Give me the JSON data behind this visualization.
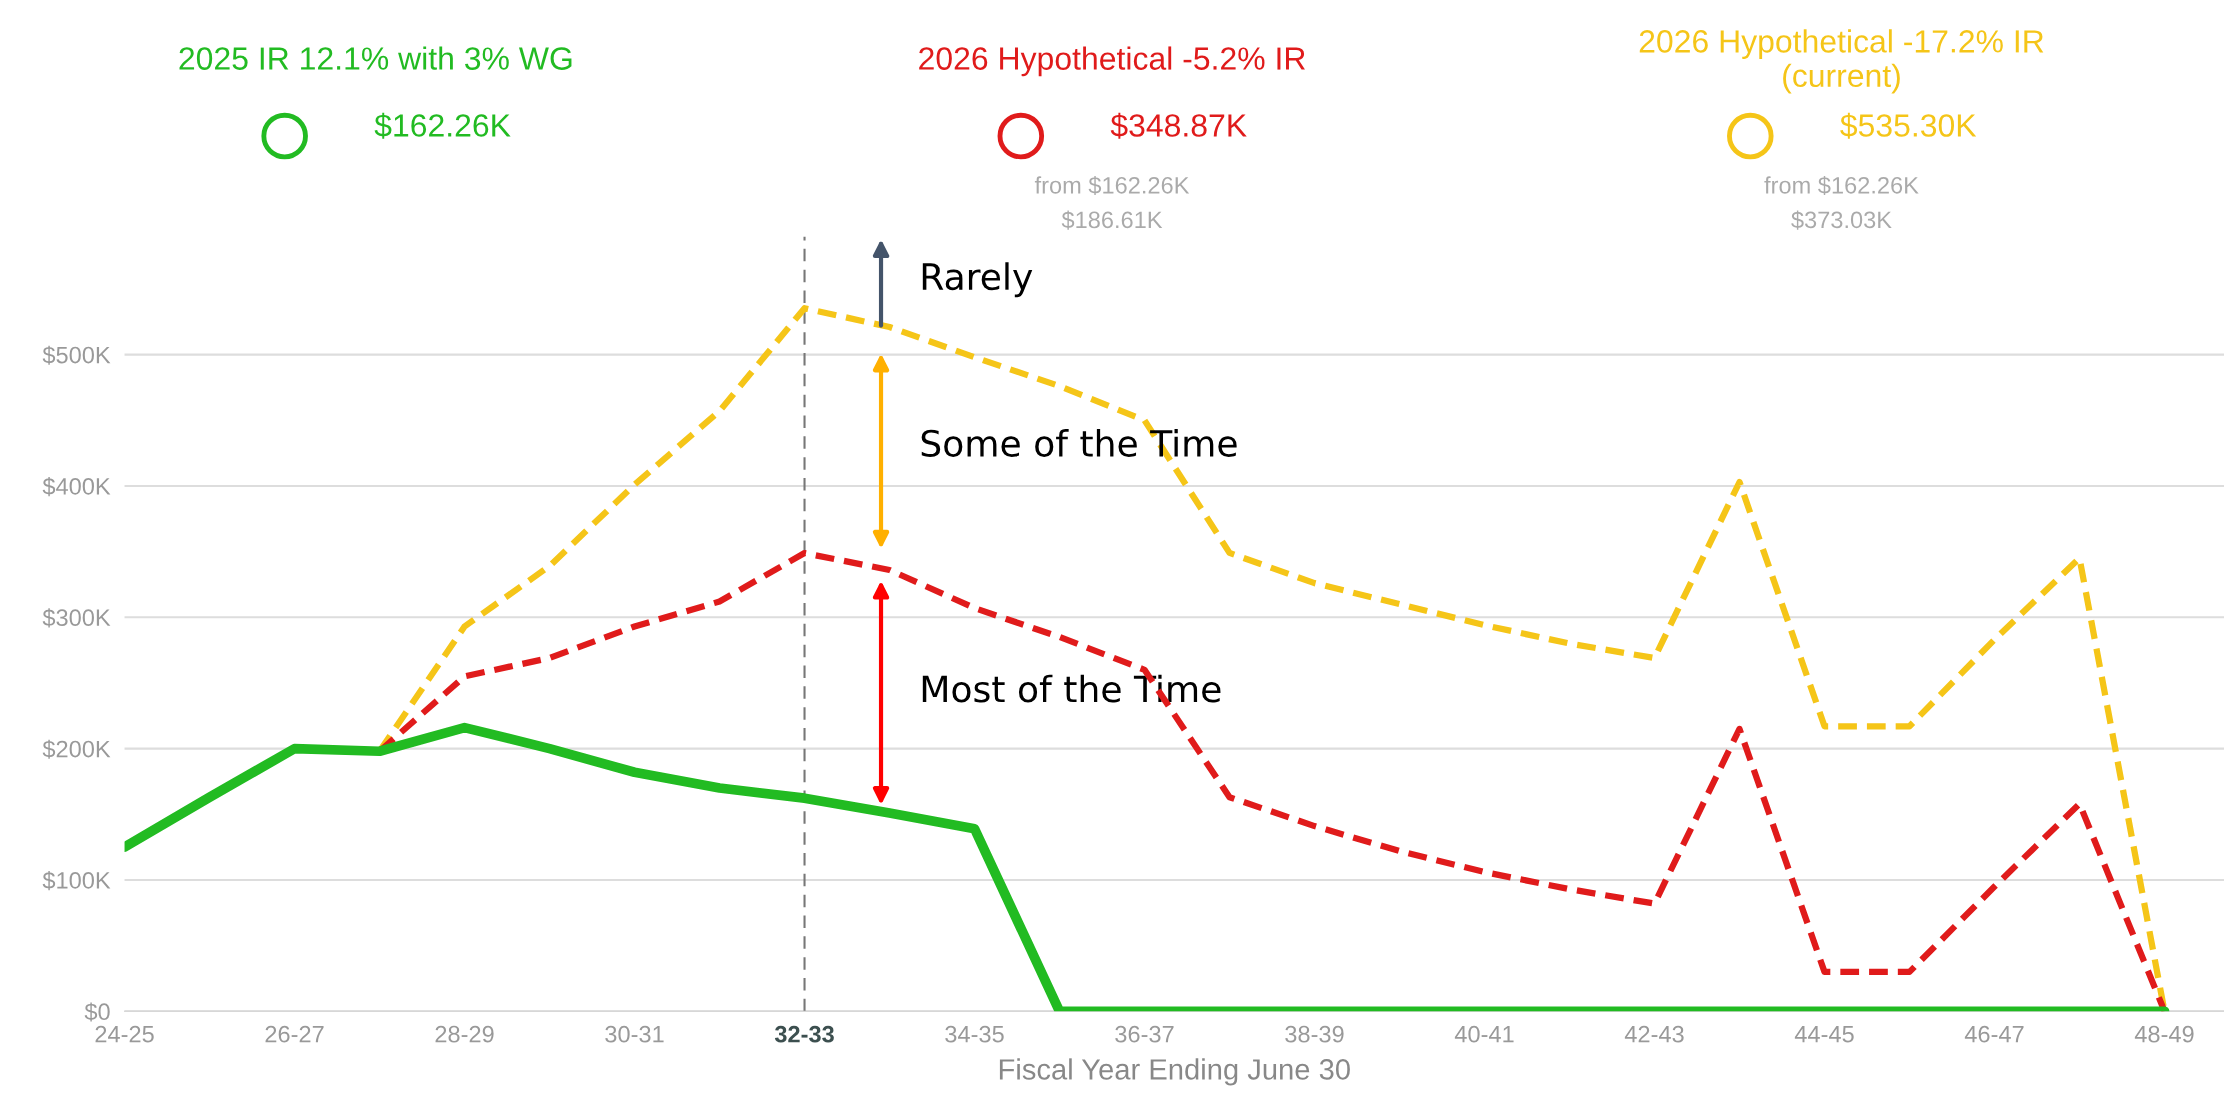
{
  "chart_data": {
    "type": "line",
    "categories": [
      "24-25",
      null,
      "26-27",
      null,
      "28-29",
      null,
      "30-31",
      null,
      "32-33",
      null,
      "34-35",
      null,
      "36-37",
      null,
      "38-39",
      null,
      "40-41",
      null,
      "42-43",
      null,
      "44-45",
      null,
      "46-47",
      null,
      "48-49"
    ],
    "series": [
      {
        "name": "2025 IR 12.1% with 3% WG",
        "color": "#22bb22",
        "line_style": "solid",
        "values": [
          125,
          163,
          200,
          198,
          216,
          200,
          182,
          170,
          162.26,
          151,
          139,
          0,
          0,
          0,
          0,
          0,
          0,
          0,
          0,
          0,
          0,
          0,
          0,
          0,
          0
        ]
      },
      {
        "name": "2026 Hypothetical -5.2% IR",
        "color": "#e01b1b",
        "line_style": "dashed",
        "values": [
          null,
          null,
          null,
          198,
          255,
          269,
          293,
          312,
          348.87,
          336,
          307,
          285,
          260,
          163,
          141,
          122,
          106,
          93,
          82,
          215,
          30,
          30,
          95,
          158,
          0
        ]
      },
      {
        "name": "2026 Hypothetical -17.2% IR (current)",
        "color": "#f5c518",
        "line_style": "dashed",
        "values": [
          null,
          null,
          null,
          198,
          293,
          339,
          401,
          457,
          535.3,
          521,
          498,
          476,
          450,
          349,
          326,
          310,
          294,
          280,
          269,
          403,
          217,
          217,
          283,
          345,
          0
        ]
      }
    ],
    "xlabel": "Fiscal Year Ending June 30",
    "ylim": [
      0,
      590
    ],
    "yticks": [
      {
        "value": 0,
        "label": "$0"
      },
      {
        "value": 100,
        "label": "$100K"
      },
      {
        "value": 200,
        "label": "$200K"
      },
      {
        "value": 300,
        "label": "$300K"
      },
      {
        "value": 400,
        "label": "$400K"
      },
      {
        "value": 500,
        "label": "$500K"
      }
    ],
    "grid": "y",
    "legend": "top",
    "marker": "none",
    "ref_lines": [
      {
        "axis": "x",
        "value": "32-33",
        "color": "#777777",
        "line_style": "dashed"
      }
    ],
    "annotations": [
      "$162.26K",
      "$348.87K",
      "from $162.26K",
      "$186.61K",
      "$535.30K",
      "from $162.26K",
      "$373.03K",
      "Rarely",
      "Some of the Time",
      "Most of the Time"
    ]
  }
}
